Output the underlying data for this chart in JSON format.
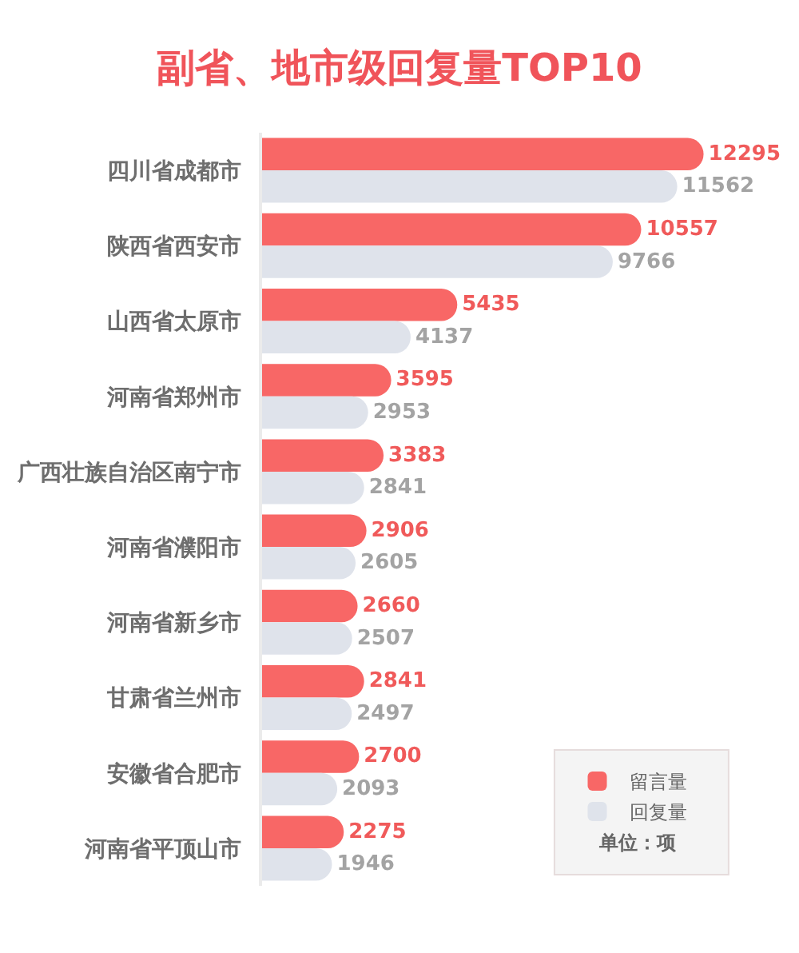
{
  "chart_data": {
    "type": "bar",
    "orientation": "horizontal",
    "title": "副省、地市级回复量TOP10",
    "categories": [
      "四川省成都市",
      "陕西省西安市",
      "山西省太原市",
      "河南省郑州市",
      "广西壮族自治区南宁市",
      "河南省濮阳市",
      "河南省新乡市",
      "甘肃省兰州市",
      "安徽省合肥市",
      "河南省平顶山市"
    ],
    "series": [
      {
        "name": "留言量",
        "color": "#f86766",
        "values": [
          12295,
          10557,
          5435,
          3595,
          3383,
          2906,
          2660,
          2841,
          2700,
          2275
        ]
      },
      {
        "name": "回复量",
        "color": "#dfe3eb",
        "values": [
          11562,
          9766,
          4137,
          2953,
          2841,
          2605,
          2507,
          2497,
          2093,
          1946
        ]
      }
    ],
    "data_labels": true,
    "legend": "bottom right",
    "annotations": [
      "单位：项"
    ]
  }
}
